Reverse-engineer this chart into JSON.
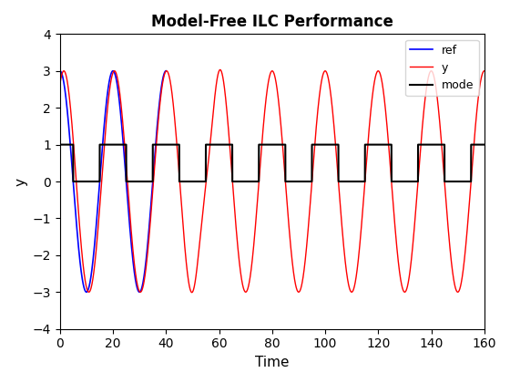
{
  "title": "Model-Free ILC Performance",
  "xlabel": "Time",
  "ylabel": "y",
  "xlim": [
    0,
    160
  ],
  "ylim": [
    -4,
    4
  ],
  "xticks": [
    0,
    20,
    40,
    60,
    80,
    100,
    120,
    140,
    160
  ],
  "yticks": [
    -4,
    -3,
    -2,
    -1,
    0,
    1,
    2,
    3,
    4
  ],
  "ref_color": "#0000ff",
  "y_color": "#ff0000",
  "mode_color": "#000000",
  "legend_labels": [
    "ref",
    "y",
    "mode"
  ],
  "figsize": [
    5.6,
    4.2
  ],
  "dpi": 100
}
